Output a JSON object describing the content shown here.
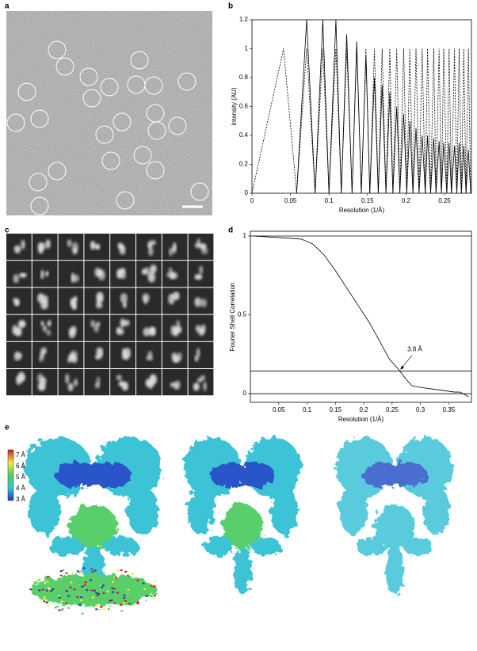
{
  "panel_labels": [
    "a",
    "b",
    "c",
    "d",
    "e"
  ],
  "chart_data": [
    {
      "type": "line",
      "ylabel": "Intensity (AU)",
      "xlabel": "Resolution (1/Å)",
      "xlim": [
        0,
        0.285
      ],
      "ylim": [
        0,
        1.2
      ],
      "xticks": [
        0,
        0.05,
        0.1,
        0.15,
        0.2,
        0.25
      ],
      "yticks": [
        0,
        0.2,
        0.4,
        0.6,
        0.8,
        1,
        1.2
      ],
      "series": [
        {
          "color": "#000000",
          "dash": true,
          "x": [
            0,
            0.041,
            0.058,
            0.071,
            0.082,
            0.092,
            0.1,
            0.109,
            0.116,
            0.123,
            0.13,
            0.136,
            0.142,
            0.148,
            0.153,
            0.159,
            0.164,
            0.169,
            0.174,
            0.179,
            0.183,
            0.188,
            0.192,
            0.197,
            0.201,
            0.205,
            0.209,
            0.213,
            0.217,
            0.221,
            0.225,
            0.228,
            0.232,
            0.236,
            0.239,
            0.243,
            0.246,
            0.249,
            0.253,
            0.256,
            0.259,
            0.263,
            0.266,
            0.269,
            0.272,
            0.275,
            0.278,
            0.281,
            0.284
          ],
          "values": [
            0,
            1,
            0,
            1,
            0,
            1,
            0,
            1,
            0,
            1,
            0,
            1,
            0,
            1,
            0,
            1,
            0,
            1,
            0,
            1,
            0,
            1,
            0,
            1,
            0,
            1,
            0,
            1,
            0,
            1,
            0,
            1,
            0,
            1,
            0,
            1,
            0,
            1,
            0,
            1,
            0,
            1,
            0,
            1,
            0,
            1,
            0,
            1,
            0
          ]
        },
        {
          "color": "#000000",
          "dash": false,
          "x": [
            0.058,
            0.071,
            0.082,
            0.092,
            0.1,
            0.109,
            0.116,
            0.123,
            0.13,
            0.136,
            0.142,
            0.148,
            0.153,
            0.159,
            0.164,
            0.169,
            0.174,
            0.179,
            0.183,
            0.188,
            0.192,
            0.197,
            0.201,
            0.205,
            0.209,
            0.213,
            0.217,
            0.221,
            0.225,
            0.228,
            0.232,
            0.236,
            0.239,
            0.243,
            0.246,
            0.249,
            0.253,
            0.256,
            0.259,
            0.263,
            0.266,
            0.269,
            0.272,
            0.275,
            0.278,
            0.281,
            0.284
          ],
          "values": [
            0,
            1.2,
            0,
            1.2,
            0,
            1.2,
            0,
            1.1,
            0,
            1.05,
            0,
            0.95,
            0,
            0.8,
            0,
            0.75,
            0,
            0.7,
            0,
            0.6,
            0,
            0.55,
            0,
            0.5,
            0,
            0.45,
            0,
            0.4,
            0,
            0.4,
            0,
            0.38,
            0,
            0.36,
            0,
            0.35,
            0,
            0.35,
            0,
            0.33,
            0,
            0.35,
            0,
            0.33,
            0,
            0.3,
            0
          ]
        }
      ]
    },
    {
      "type": "line",
      "ylabel": "Fourier Shell Correlation",
      "xlabel": "Resolution (1/Å)",
      "xlim": [
        0,
        0.39
      ],
      "ylim": [
        -0.055,
        1.03
      ],
      "xticks": [
        0.05,
        0.1,
        0.15,
        0.2,
        0.25,
        0.3,
        0.35
      ],
      "yticks": [
        0,
        0.5,
        1
      ],
      "hlines": [
        1,
        0.143,
        0
      ],
      "annotation": {
        "text": "3.8 Å",
        "x": 0.263,
        "y": 0.143
      },
      "series": [
        {
          "color": "#000000",
          "dash": false,
          "x": [
            0.005,
            0.05,
            0.09,
            0.11,
            0.13,
            0.15,
            0.17,
            0.19,
            0.21,
            0.23,
            0.245,
            0.26,
            0.275,
            0.285,
            0.3,
            0.32,
            0.34,
            0.36,
            0.37,
            0.385
          ],
          "values": [
            1,
            0.99,
            0.98,
            0.95,
            0.88,
            0.78,
            0.67,
            0.56,
            0.45,
            0.32,
            0.22,
            0.16,
            0.09,
            0.05,
            0.04,
            0.03,
            0.02,
            0.01,
            0.01,
            -0.02
          ]
        }
      ]
    }
  ],
  "colorbar": {
    "labels": [
      "7 Å",
      "6 Å",
      "5 Å",
      "4 Å",
      "3 Å"
    ]
  }
}
